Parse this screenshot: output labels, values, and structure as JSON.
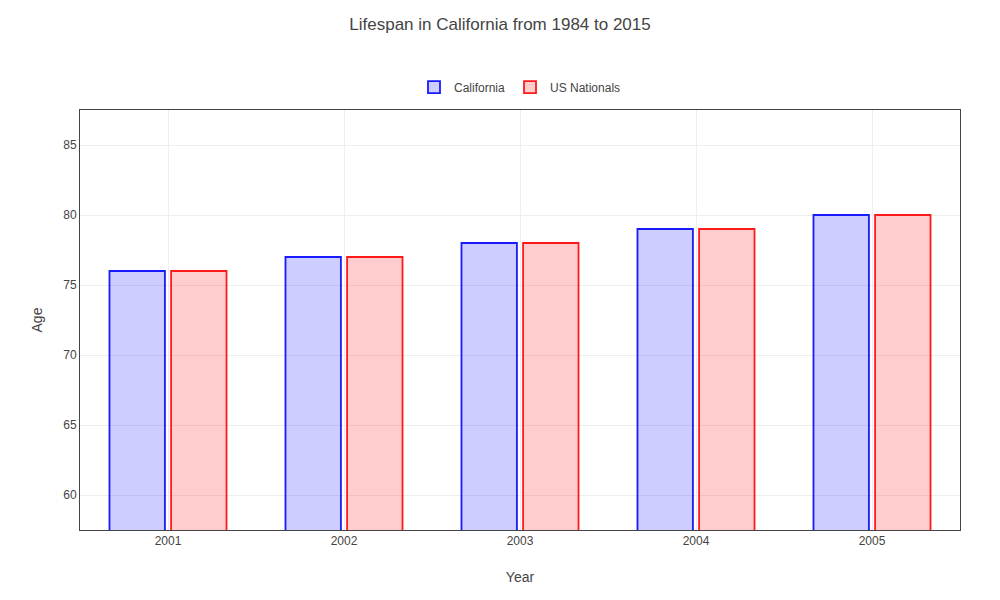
{
  "chart_data": {
    "type": "bar",
    "title": "Lifespan in California from 1984 to 2015",
    "x_label": "Year",
    "y_label": "Age",
    "categories": [
      "2001",
      "2002",
      "2003",
      "2004",
      "2005"
    ],
    "series": [
      {
        "name": "California",
        "color": "#1a1aff",
        "values": [
          76.0,
          77.0,
          78.0,
          79.0,
          80.0
        ]
      },
      {
        "name": "US Nationals",
        "color": "#ff1a1a",
        "values": [
          76.0,
          77.0,
          78.0,
          79.0,
          80.0
        ]
      }
    ],
    "ylim": [
      57.5,
      87.5
    ],
    "yticks": [
      60,
      65,
      70,
      75,
      80,
      85
    ],
    "grid": true,
    "legend": "top"
  }
}
